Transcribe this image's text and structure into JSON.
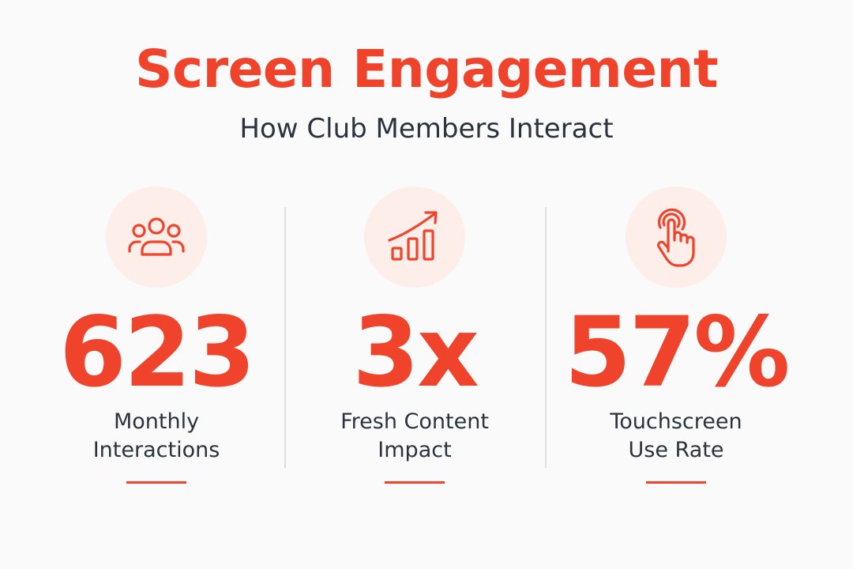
{
  "header": {
    "title": "Screen Engagement",
    "subtitle": "How Club Members Interact"
  },
  "stats": [
    {
      "icon": "users-group-icon",
      "value": "623",
      "label_line1": "Monthly",
      "label_line2": "Interactions"
    },
    {
      "icon": "bar-chart-growth-icon",
      "value": "3x",
      "label_line1": "Fresh Content",
      "label_line2": "Impact"
    },
    {
      "icon": "touch-tap-icon",
      "value": "57%",
      "label_line1": "Touchscreen",
      "label_line2": "Use Rate"
    }
  ],
  "colors": {
    "accent": "#f0432c",
    "text": "#2a3340",
    "icon_bg": "#fdeee9",
    "divider": "#dedede",
    "background": "#fafafa"
  }
}
